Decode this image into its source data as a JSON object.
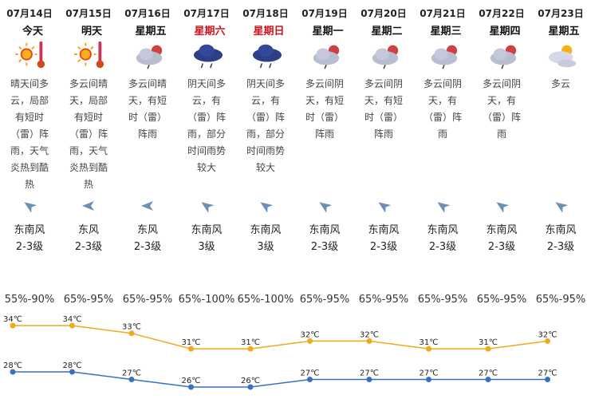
{
  "days": [
    {
      "date": "07月14日",
      "weekday": "今天",
      "weekend": false,
      "icon": "sunny-hot-icon",
      "description": "晴天间多\n云，局部\n有短时\n（雷）阵\n雨，天气\n炎热到酷\n热",
      "wind_direction": "东南风",
      "wind_level": "2-3级",
      "humidity": "55%-90%"
    },
    {
      "date": "07月15日",
      "weekday": "明天",
      "weekend": false,
      "icon": "sunny-hot-icon",
      "description": "多云间晴\n天，局部\n有短时\n（雷）阵\n雨，天气\n炎热到酷\n热",
      "wind_direction": "东风",
      "wind_level": "2-3级",
      "humidity": "65%-95%"
    },
    {
      "date": "07月16日",
      "weekday": "星期五",
      "weekend": false,
      "icon": "partly-cloudy-shower-icon",
      "description": "多云间晴\n天，有短\n时（雷）\n阵雨",
      "wind_direction": "东风",
      "wind_level": "2-3级",
      "humidity": "65%-95%"
    },
    {
      "date": "07月17日",
      "weekday": "星期六",
      "weekend": true,
      "icon": "overcast-thunder-rain-icon",
      "description": "阴天间多\n云，有\n（雷）阵\n雨，部分\n时间雨势\n较大",
      "wind_direction": "东南风",
      "wind_level": "3级",
      "humidity": "65%-100%"
    },
    {
      "date": "07月18日",
      "weekday": "星期日",
      "weekend": true,
      "icon": "overcast-thunder-rain-icon",
      "description": "阴天间多\n云，有\n（雷）阵\n雨，部分\n时间雨势\n较大",
      "wind_direction": "东南风",
      "wind_level": "3级",
      "humidity": "65%-100%"
    },
    {
      "date": "07月19日",
      "weekday": "星期一",
      "weekend": false,
      "icon": "partly-cloudy-shower-icon",
      "description": "多云间阴\n天，有短\n时（雷）\n阵雨",
      "wind_direction": "东南风",
      "wind_level": "2-3级",
      "humidity": "65%-95%"
    },
    {
      "date": "07月20日",
      "weekday": "星期二",
      "weekend": false,
      "icon": "partly-cloudy-shower-icon",
      "description": "多云间阴\n天，有短\n时（雷）\n阵雨",
      "wind_direction": "东南风",
      "wind_level": "2-3级",
      "humidity": "65%-95%"
    },
    {
      "date": "07月21日",
      "weekday": "星期三",
      "weekend": false,
      "icon": "partly-cloudy-shower-icon",
      "description": "多云间阴\n天，有\n（雷）阵\n雨",
      "wind_direction": "东南风",
      "wind_level": "2-3级",
      "humidity": "65%-95%"
    },
    {
      "date": "07月22日",
      "weekday": "星期四",
      "weekend": false,
      "icon": "partly-cloudy-shower-icon",
      "description": "多云间阴\n天，有\n（雷）阵\n雨",
      "wind_direction": "东南风",
      "wind_level": "2-3级",
      "humidity": "65%-95%"
    },
    {
      "date": "07月23日",
      "weekday": "星期五",
      "weekend": false,
      "icon": "partly-cloudy-icon",
      "description": "多云",
      "wind_direction": "东南风",
      "wind_level": "2-3级",
      "humidity": "65%-95%"
    }
  ],
  "colors": {
    "high": "#f0a81c",
    "low": "#3a6fc8",
    "weekend": "#d0121b",
    "arrow": "#6d8fb5"
  },
  "chart_data": {
    "type": "line",
    "categories": [
      "07月14日",
      "07月15日",
      "07月16日",
      "07月17日",
      "07月18日",
      "07月19日",
      "07月20日",
      "07月21日",
      "07月22日",
      "07月23日"
    ],
    "unit": "℃",
    "series": [
      {
        "values": [
          34,
          34,
          33,
          31,
          31,
          32,
          32,
          31,
          31,
          32
        ],
        "color": "#f0a81c"
      },
      {
        "values": [
          28,
          28,
          27,
          26,
          26,
          27,
          27,
          27,
          27,
          27
        ],
        "color": "#3a6fc8"
      }
    ],
    "grid": false
  }
}
